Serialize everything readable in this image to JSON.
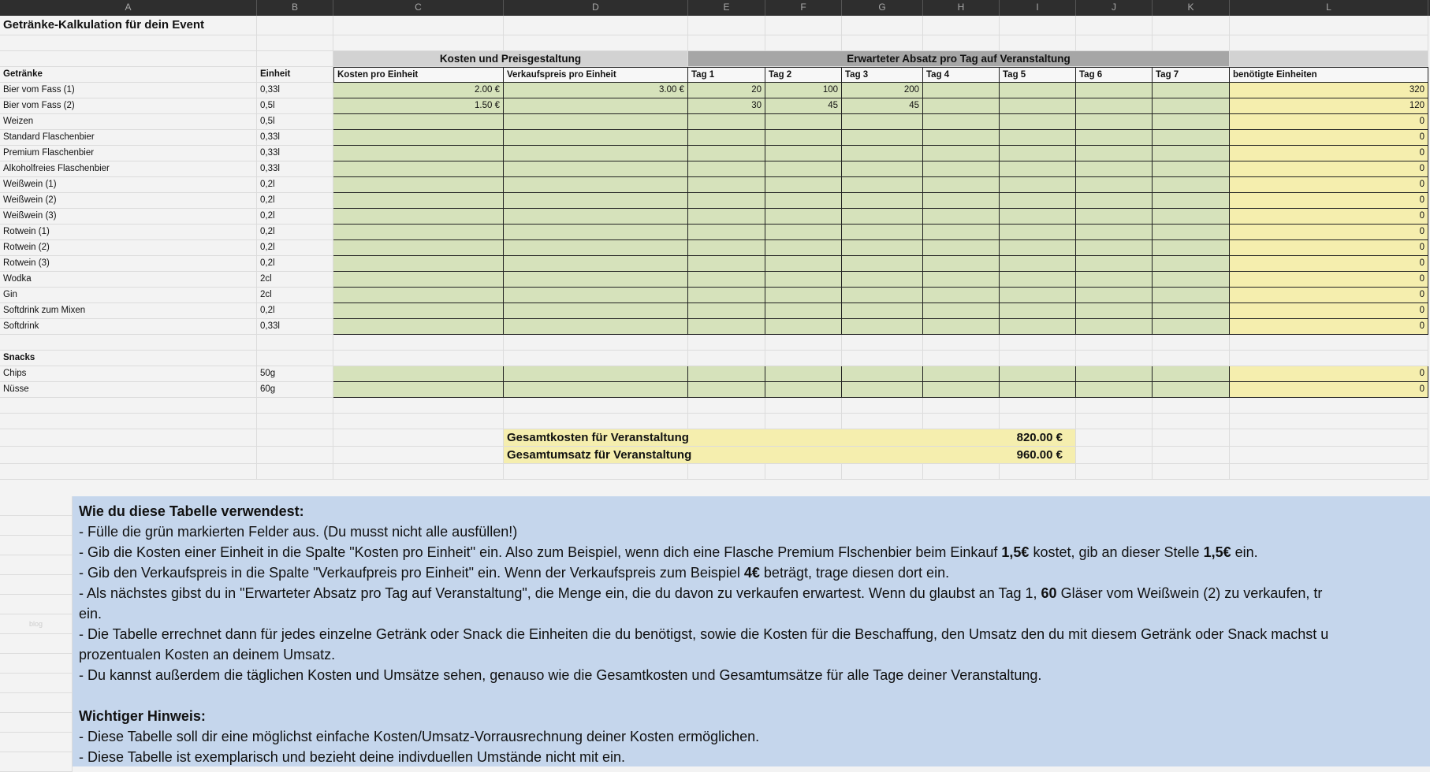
{
  "columns": [
    "A",
    "B",
    "C",
    "D",
    "E",
    "F",
    "G",
    "H",
    "I",
    "J",
    "K",
    "L"
  ],
  "title": "Getränke-Kalkulation für dein Event",
  "sections": {
    "costs": "Kosten und Preisgestaltung",
    "sales": "Erwarteter Absatz pro Tag auf Veranstaltung"
  },
  "headers": [
    "Getränke",
    "Einheit",
    "Kosten pro Einheit",
    "Verkaufspreis pro Einheit",
    "Tag 1",
    "Tag 2",
    "Tag 3",
    "Tag 4",
    "Tag 5",
    "Tag 6",
    "Tag 7",
    "benötigte Einheiten"
  ],
  "drinks": [
    {
      "name": "Bier vom Fass (1)",
      "unit": "0,33l",
      "cost": "2.00 €",
      "price": "3.00 €",
      "days": [
        "20",
        "100",
        "200",
        "",
        "",
        "",
        ""
      ],
      "needed": "320"
    },
    {
      "name": "Bier vom Fass (2)",
      "unit": "0,5l",
      "cost": "1.50 €",
      "price": "",
      "days": [
        "30",
        "45",
        "45",
        "",
        "",
        "",
        ""
      ],
      "needed": "120"
    },
    {
      "name": "Weizen",
      "unit": "0,5l",
      "cost": "",
      "price": "",
      "days": [
        "",
        "",
        "",
        "",
        "",
        "",
        ""
      ],
      "needed": "0"
    },
    {
      "name": "Standard Flaschenbier",
      "unit": "0,33l",
      "cost": "",
      "price": "",
      "days": [
        "",
        "",
        "",
        "",
        "",
        "",
        ""
      ],
      "needed": "0"
    },
    {
      "name": "Premium Flaschenbier",
      "unit": "0,33l",
      "cost": "",
      "price": "",
      "days": [
        "",
        "",
        "",
        "",
        "",
        "",
        ""
      ],
      "needed": "0"
    },
    {
      "name": "Alkoholfreies Flaschenbier",
      "unit": "0,33l",
      "cost": "",
      "price": "",
      "days": [
        "",
        "",
        "",
        "",
        "",
        "",
        ""
      ],
      "needed": "0"
    },
    {
      "name": "Weißwein (1)",
      "unit": "0,2l",
      "cost": "",
      "price": "",
      "days": [
        "",
        "",
        "",
        "",
        "",
        "",
        ""
      ],
      "needed": "0"
    },
    {
      "name": "Weißwein (2)",
      "unit": "0,2l",
      "cost": "",
      "price": "",
      "days": [
        "",
        "",
        "",
        "",
        "",
        "",
        ""
      ],
      "needed": "0"
    },
    {
      "name": "Weißwein (3)",
      "unit": "0,2l",
      "cost": "",
      "price": "",
      "days": [
        "",
        "",
        "",
        "",
        "",
        "",
        ""
      ],
      "needed": "0"
    },
    {
      "name": "Rotwein (1)",
      "unit": "0,2l",
      "cost": "",
      "price": "",
      "days": [
        "",
        "",
        "",
        "",
        "",
        "",
        ""
      ],
      "needed": "0"
    },
    {
      "name": "Rotwein (2)",
      "unit": "0,2l",
      "cost": "",
      "price": "",
      "days": [
        "",
        "",
        "",
        "",
        "",
        "",
        ""
      ],
      "needed": "0"
    },
    {
      "name": "Rotwein (3)",
      "unit": "0,2l",
      "cost": "",
      "price": "",
      "days": [
        "",
        "",
        "",
        "",
        "",
        "",
        ""
      ],
      "needed": "0"
    },
    {
      "name": "Wodka",
      "unit": "2cl",
      "cost": "",
      "price": "",
      "days": [
        "",
        "",
        "",
        "",
        "",
        "",
        ""
      ],
      "needed": "0"
    },
    {
      "name": "Gin",
      "unit": "2cl",
      "cost": "",
      "price": "",
      "days": [
        "",
        "",
        "",
        "",
        "",
        "",
        ""
      ],
      "needed": "0"
    },
    {
      "name": "Softdrink zum Mixen",
      "unit": "0,2l",
      "cost": "",
      "price": "",
      "days": [
        "",
        "",
        "",
        "",
        "",
        "",
        ""
      ],
      "needed": "0"
    },
    {
      "name": "Softdrink",
      "unit": "0,33l",
      "cost": "",
      "price": "",
      "days": [
        "",
        "",
        "",
        "",
        "",
        "",
        ""
      ],
      "needed": "0"
    }
  ],
  "snacks_label": "Snacks",
  "snacks": [
    {
      "name": "Chips",
      "unit": "50g",
      "cost": "",
      "price": "",
      "days": [
        "",
        "",
        "",
        "",
        "",
        "",
        ""
      ],
      "needed": "0"
    },
    {
      "name": "Nüsse",
      "unit": "60g",
      "cost": "",
      "price": "",
      "days": [
        "",
        "",
        "",
        "",
        "",
        "",
        ""
      ],
      "needed": "0"
    }
  ],
  "totals": [
    {
      "label": "Gesamtkosten für Veranstaltung",
      "value": "820.00 €"
    },
    {
      "label": "Gesamtumsatz für Veranstaltung",
      "value": "960.00 €"
    }
  ],
  "info": {
    "heading1": "Wie du diese Tabelle verwendest:",
    "lines1": [
      [
        {
          "t": "- Fülle die grün markierten Felder aus. (Du musst nicht alle ausfüllen!)"
        }
      ],
      [
        {
          "t": "- Gib die Kosten einer Einheit in die Spalte \"Kosten pro Einheit\" ein. Also zum Beispiel, wenn dich eine Flasche Premium Flschenbier beim Einkauf "
        },
        {
          "t": "1,5€",
          "b": true
        },
        {
          "t": " kostet, gib an dieser Stelle "
        },
        {
          "t": "1,5€",
          "b": true
        },
        {
          "t": " ein."
        }
      ],
      [
        {
          "t": "- Gib den Verkaufspreis in die Spalte \"Verkaufpreis pro Einheit\" ein. Wenn der Verkaufspreis zum Beispiel "
        },
        {
          "t": "4€",
          "b": true
        },
        {
          "t": " beträgt, trage diesen dort ein."
        }
      ],
      [
        {
          "t": "- Als nächstes gibst du in \"Erwarteter Absatz pro Tag auf Veranstaltung\", die Menge ein, die du davon zu verkaufen erwartest. Wenn du glaubst an Tag 1, "
        },
        {
          "t": "60",
          "b": true
        },
        {
          "t": " Gläser vom Weißwein (2) zu verkaufen, tr"
        }
      ],
      [
        {
          "t": "ein."
        }
      ],
      [
        {
          "t": "- Die Tabelle errechnet dann für jedes einzelne Getränk oder Snack die Einheiten die du benötigst, sowie die Kosten für die Beschaffung, den Umsatz den du mit diesem Getränk oder Snack machst u"
        }
      ],
      [
        {
          "t": "prozentualen Kosten an deinem Umsatz."
        }
      ],
      [
        {
          "t": "- Du kannst außerdem die täglichen Kosten und Umsätze sehen, genauso wie die Gesamtkosten und Gesamtumsätze für alle Tage deiner Veranstaltung."
        }
      ]
    ],
    "heading2": "Wichtiger Hinweis:",
    "lines2": [
      [
        {
          "t": "- Diese Tabelle soll dir eine möglichst einfache Kosten/Umsatz-Vorrausrechnung deiner Kosten ermöglichen."
        }
      ],
      [
        {
          "t": "- Diese Tabelle ist exemplarisch und bezieht deine indivduellen Umstände nicht mit ein."
        }
      ]
    ]
  },
  "watermark": "blog",
  "colors": {
    "input_green": "#d6e2bb",
    "output_yellow": "#f5eeae",
    "info_blue": "#c5d6ec",
    "section_gray": "#a6a6a6"
  }
}
